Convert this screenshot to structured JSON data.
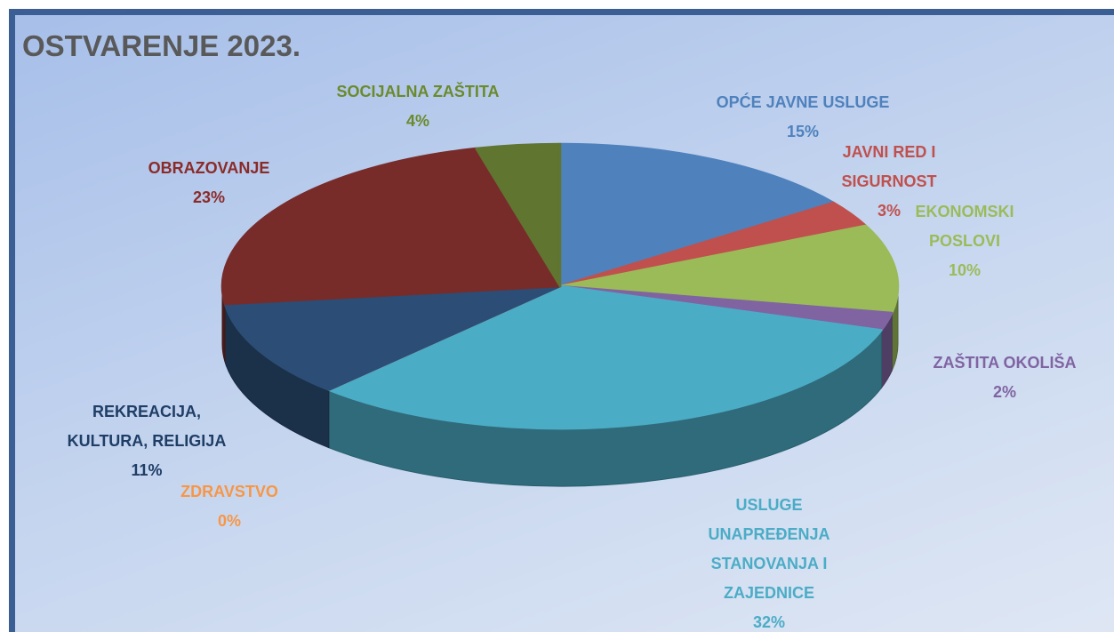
{
  "chart_data": {
    "type": "pie",
    "title": "OSTVARENJE 2023.",
    "categories": [
      "OPĆE JAVNE USLUGE",
      "JAVNI RED I SIGURNOST",
      "EKONOMSKI POSLOVI",
      "ZAŠTITA OKOLIŠA",
      "USLUGE UNAPREĐENJA STANOVANJA I ZAJEDNICE",
      "ZDRAVSTVO",
      "REKREACIJA, KULTURA, RELIGIJA",
      "OBRAZOVANJE",
      "SOCIJALNA ZAŠTITA"
    ],
    "values": [
      15,
      3,
      10,
      2,
      32,
      0,
      11,
      23,
      4
    ],
    "value_labels": [
      "15%",
      "3%",
      "10%",
      "2%",
      "32%",
      "0%",
      "11%",
      "23%",
      "4%"
    ],
    "colors": [
      "#4f81bd",
      "#c0504d",
      "#9bbb59",
      "#8064a2",
      "#4bacc6",
      "#f79646",
      "#2c4d75",
      "#772c2a",
      "#5f7530"
    ]
  }
}
